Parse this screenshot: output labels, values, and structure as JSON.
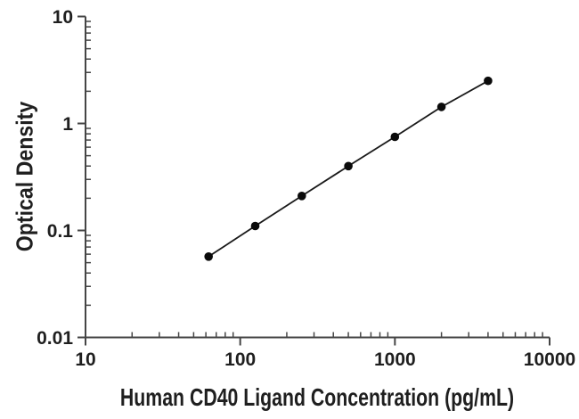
{
  "figure": {
    "background_color": "#ffffff",
    "text_color": "#1f1f1f",
    "axis_color": "#454545",
    "curve_color": "#1a1a1a",
    "marker_color": "#0a0a0a"
  },
  "chart_data": {
    "type": "scatter",
    "title": "",
    "xlabel": "Human CD40 Ligand Concentration (pg/mL)",
    "ylabel": "Optical Density",
    "xscale": "log",
    "yscale": "log",
    "xlim": [
      10,
      10000
    ],
    "ylim": [
      0.01,
      10
    ],
    "grid": false,
    "legend": null,
    "x_ticks": [
      {
        "value": 10,
        "label": "10"
      },
      {
        "value": 100,
        "label": "100"
      },
      {
        "value": 1000,
        "label": "1000"
      },
      {
        "value": 10000,
        "label": "10000"
      }
    ],
    "y_ticks": [
      {
        "value": 10,
        "label": "10"
      },
      {
        "value": 1,
        "label": "1"
      },
      {
        "value": 0.1,
        "label": "0.1"
      },
      {
        "value": 0.01,
        "label": "0.01"
      }
    ],
    "minor_tick_multiples": [
      2,
      3,
      4,
      5,
      6,
      7,
      8,
      9
    ],
    "tick_style": {
      "major": "outward",
      "minor": "inward"
    },
    "series": [
      {
        "name": "standard-curve",
        "marker": "filled-circle",
        "line": "solid",
        "x": [
          62.5,
          125,
          250,
          500,
          1000,
          2000,
          4000
        ],
        "y": [
          0.057,
          0.11,
          0.21,
          0.4,
          0.75,
          1.43,
          2.5
        ]
      }
    ]
  }
}
